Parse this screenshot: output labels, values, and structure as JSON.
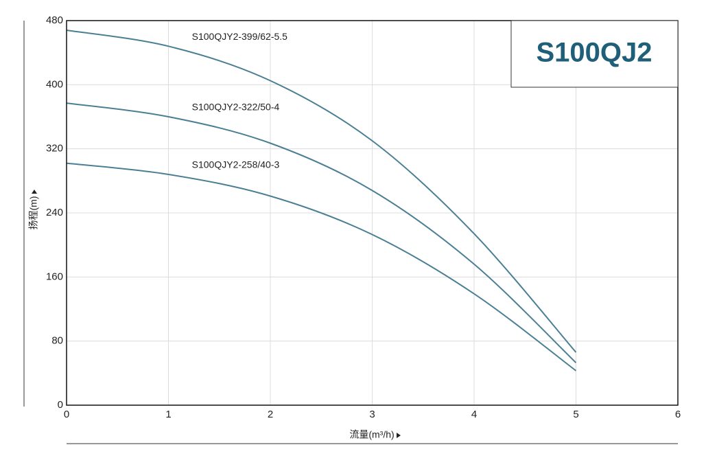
{
  "chart_data": {
    "type": "line",
    "title": "S100QJ2",
    "x_label": "流量(m³/h)",
    "y_label": "扬程(m)",
    "x": [
      0,
      1,
      2,
      3,
      4,
      5
    ],
    "series": [
      {
        "name": "S100QJY2-399/62-5.5",
        "color": "#4a7f93",
        "values": [
          468,
          448,
          405,
          330,
          214,
          66
        ]
      },
      {
        "name": "S100QJY2-322/50-4",
        "color": "#4a7f93",
        "values": [
          377,
          360,
          327,
          268,
          176,
          53
        ]
      },
      {
        "name": "S100QJY2-258/40-3",
        "color": "#4a7f93",
        "values": [
          302,
          288,
          261,
          213,
          139,
          43
        ]
      }
    ],
    "xlim": [
      0,
      6
    ],
    "xticks": [
      0,
      1,
      2,
      3,
      4,
      5,
      6
    ],
    "ylim": [
      0,
      480
    ],
    "yticks": [
      0,
      80,
      160,
      240,
      320,
      400,
      480
    ],
    "grid": true
  }
}
